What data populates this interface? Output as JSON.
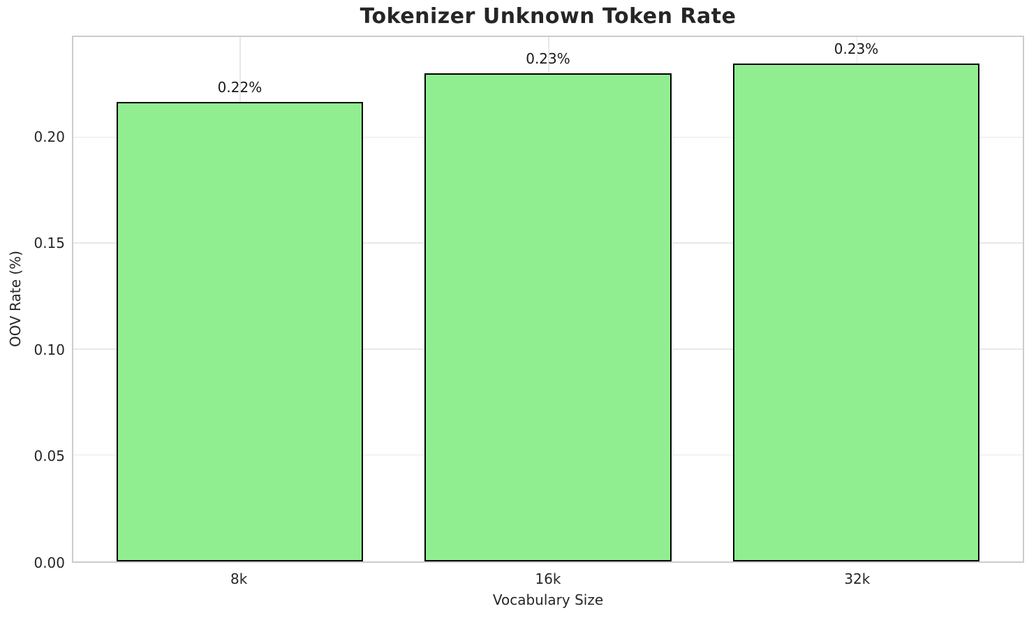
{
  "chart_data": {
    "type": "bar",
    "title": "Tokenizer Unknown Token Rate",
    "xlabel": "Vocabulary Size",
    "ylabel": "OOV Rate (%)",
    "categories": [
      "8k",
      "16k",
      "32k"
    ],
    "values": [
      0.217,
      0.2305,
      0.235
    ],
    "bar_labels": [
      "0.22%",
      "0.23%",
      "0.23%"
    ],
    "ylim": [
      0,
      0.2475
    ],
    "yticks": [
      0,
      0.05,
      0.1,
      0.15,
      0.2
    ],
    "ytick_labels": [
      "0.00",
      "0.05",
      "0.10",
      "0.15",
      "0.20"
    ],
    "grid": true,
    "legend_position": "none",
    "bar_color": "#90EE90",
    "bar_edge_color": "#000000"
  },
  "colors": {
    "background": "#ffffff",
    "grid": "#e8e8e8",
    "spine": "#cccccc",
    "title_text": "#262626",
    "tick_text": "#262626"
  }
}
